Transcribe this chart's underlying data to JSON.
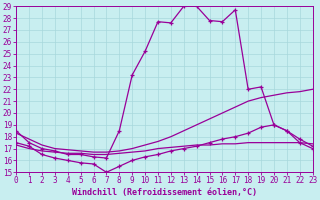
{
  "xlabel": "Windchill (Refroidissement éolien,°C)",
  "bg_color": "#c8eef0",
  "grid_color": "#a8d8dc",
  "line_color": "#990099",
  "xlim": [
    0,
    23
  ],
  "ylim": [
    15,
    29
  ],
  "yticks": [
    15,
    16,
    17,
    18,
    19,
    20,
    21,
    22,
    23,
    24,
    25,
    26,
    27,
    28,
    29
  ],
  "xticks": [
    0,
    1,
    2,
    3,
    4,
    5,
    6,
    7,
    8,
    9,
    10,
    11,
    12,
    13,
    14,
    15,
    16,
    17,
    18,
    19,
    20,
    21,
    22,
    23
  ],
  "curve1_x": [
    0,
    1,
    2,
    3,
    4,
    5,
    6,
    7,
    8,
    9,
    10,
    11,
    12,
    13,
    14,
    15,
    16,
    17,
    18,
    19,
    20,
    21,
    22,
    23
  ],
  "curve1_y": [
    18.5,
    17.5,
    17.0,
    16.8,
    16.5,
    16.5,
    16.3,
    16.2,
    18.5,
    23.2,
    25.2,
    27.7,
    27.6,
    29.0,
    29.0,
    27.8,
    27.7,
    28.7,
    22.0,
    22.2,
    19.0,
    18.5,
    17.5,
    17.0
  ],
  "curve2_x": [
    0,
    1,
    2,
    3,
    4,
    5,
    6,
    7,
    8,
    9,
    10,
    11,
    12,
    13,
    14,
    15,
    16,
    17,
    18,
    19,
    20,
    21,
    22,
    23
  ],
  "curve2_y": [
    18.3,
    17.8,
    17.3,
    17.0,
    16.9,
    16.8,
    16.7,
    16.7,
    16.8,
    17.0,
    17.3,
    17.6,
    18.0,
    18.5,
    19.0,
    19.5,
    20.0,
    20.5,
    21.0,
    21.3,
    21.5,
    21.7,
    21.8,
    22.0
  ],
  "curve3_x": [
    0,
    1,
    2,
    3,
    4,
    5,
    6,
    7,
    8,
    9,
    10,
    11,
    12,
    13,
    14,
    15,
    16,
    17,
    18,
    19,
    20,
    21,
    22,
    23
  ],
  "curve3_y": [
    17.3,
    17.0,
    16.8,
    16.7,
    16.6,
    16.6,
    16.5,
    16.5,
    16.6,
    16.7,
    16.8,
    17.0,
    17.1,
    17.2,
    17.3,
    17.3,
    17.4,
    17.4,
    17.5,
    17.5,
    17.5,
    17.5,
    17.5,
    17.4
  ],
  "curve4_x": [
    0,
    1,
    2,
    3,
    4,
    5,
    6,
    7,
    8,
    9,
    10,
    11,
    12,
    13,
    14,
    15,
    16,
    17,
    18,
    19,
    20,
    21,
    22,
    23
  ],
  "curve4_y": [
    17.5,
    17.2,
    16.5,
    16.2,
    16.0,
    15.8,
    15.7,
    15.0,
    15.5,
    16.0,
    16.3,
    16.5,
    16.8,
    17.0,
    17.2,
    17.5,
    17.8,
    18.0,
    18.3,
    18.8,
    19.0,
    18.5,
    17.8,
    17.2
  ],
  "tick_fontsize": 5.5,
  "xlabel_fontsize": 6
}
